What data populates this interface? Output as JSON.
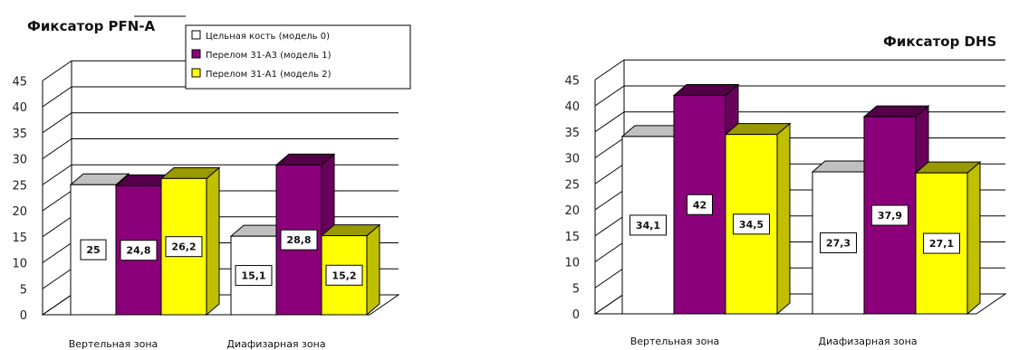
{
  "chart_data": [
    {
      "type": "bar",
      "title": "Фиксатор PFN-A",
      "categories": [
        "Вертельная зона",
        "Диафизарная зона"
      ],
      "series": [
        {
          "name": "Цельная кость (модель 0)",
          "values": [
            25,
            15.1
          ],
          "labels": [
            "25",
            "15,1"
          ],
          "color": "#ffffff"
        },
        {
          "name": "Перелом 31-А3 (модель 1)",
          "values": [
            24.8,
            28.8
          ],
          "labels": [
            "24,8",
            "28,8"
          ],
          "color": "#8b007a"
        },
        {
          "name": "Перелом 31-А1 (модель 2)",
          "values": [
            26.2,
            15.2
          ],
          "labels": [
            "26,2",
            "15,2"
          ],
          "color": "#ffff00"
        }
      ],
      "yticks": [
        "0",
        "5",
        "10",
        "15",
        "20",
        "25",
        "30",
        "35",
        "40",
        "45"
      ],
      "ylim": [
        0,
        45
      ],
      "grid": true,
      "legend": "top-right"
    },
    {
      "type": "bar",
      "title": "Фиксатор DHS",
      "categories": [
        "Вертельная зона",
        "Диафизарная зона"
      ],
      "series": [
        {
          "values": [
            34.1,
            27.3
          ],
          "labels": [
            "34,1",
            "27,3"
          ],
          "color": "#ffffff"
        },
        {
          "values": [
            42,
            37.9
          ],
          "labels": [
            "42",
            "37,9"
          ],
          "color": "#8b007a"
        },
        {
          "values": [
            34.5,
            27.1
          ],
          "labels": [
            "34,5",
            "27,1"
          ],
          "color": "#ffff00"
        }
      ],
      "yticks": [
        "0",
        "5",
        "10",
        "15",
        "20",
        "25",
        "30",
        "35",
        "40",
        "45"
      ],
      "ylim": [
        0,
        45
      ],
      "grid": true,
      "legend": "none"
    }
  ]
}
